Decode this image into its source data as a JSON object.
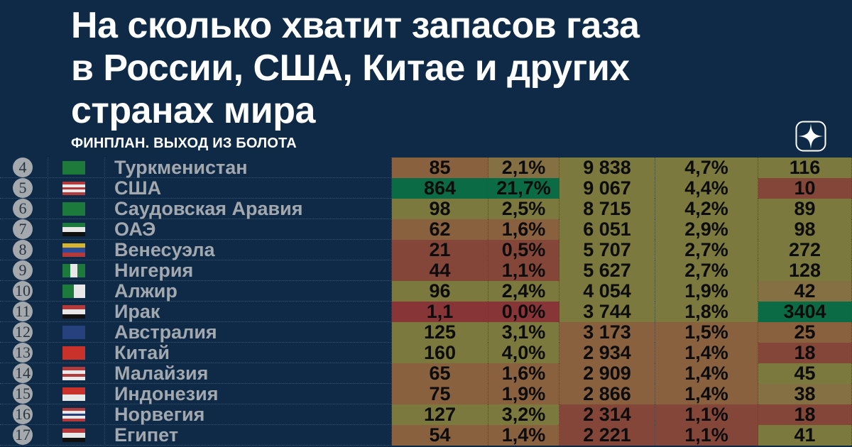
{
  "title": {
    "lines": [
      "На сколько хватит запасов газа",
      "в России, США, Китае и других",
      "странах мира"
    ]
  },
  "brand": {
    "label": "ФИНПЛАН. ВЫХОД ИЗ БОЛОТА",
    "logo_icon": "sparkle-star-icon"
  },
  "colors": {
    "background": "#0e2a47",
    "green": "#0b6b45",
    "olive": "#7b793d",
    "olive_brown": "#847042",
    "brown": "#8a613f",
    "red_brown": "#85463a",
    "red": "#883538"
  },
  "table": {
    "rows": [
      {
        "rank": "4",
        "country": "Туркменистан",
        "flag": [
          "#1e7a3a",
          "#1e7a3a"
        ],
        "flag_dir": "h",
        "values": [
          "85",
          "2,1%",
          "9 838",
          "4,7%",
          "116"
        ],
        "cell_colors": [
          "brown",
          "olive_brown",
          "olive",
          "olive",
          "olive"
        ]
      },
      {
        "rank": "5",
        "country": "США",
        "flag": [
          "#b33a3a",
          "#e8e8e8",
          "#b33a3a",
          "#e8e8e8",
          "#b33a3a"
        ],
        "flag_dir": "h",
        "values": [
          "864",
          "21,7%",
          "9 067",
          "4,4%",
          "10"
        ],
        "cell_colors": [
          "green",
          "green",
          "olive",
          "olive",
          "red_brown"
        ]
      },
      {
        "rank": "6",
        "country": "Саудовская Аравия",
        "flag": [
          "#1b7a3c"
        ],
        "flag_dir": "h",
        "values": [
          "98",
          "2,5%",
          "8 715",
          "4,2%",
          "89"
        ],
        "cell_colors": [
          "olive",
          "olive",
          "olive",
          "olive",
          "olive"
        ]
      },
      {
        "rank": "7",
        "country": "ОАЭ",
        "flag": [
          "#1b7a3c",
          "#e8e8e8",
          "#111111"
        ],
        "flag_dir": "h",
        "values": [
          "62",
          "1,6%",
          "6 051",
          "2,9%",
          "98"
        ],
        "cell_colors": [
          "brown",
          "brown",
          "olive",
          "olive",
          "olive"
        ]
      },
      {
        "rank": "8",
        "country": "Венесуэла",
        "flag": [
          "#d8b52a",
          "#2a4a9a",
          "#b33a3a"
        ],
        "flag_dir": "h",
        "values": [
          "21",
          "0,5%",
          "5 707",
          "2,7%",
          "272"
        ],
        "cell_colors": [
          "red_brown",
          "red_brown",
          "olive",
          "olive",
          "olive"
        ]
      },
      {
        "rank": "9",
        "country": "Нигерия",
        "flag": [
          "#1b7a3c",
          "#e8e8e8",
          "#1b7a3c"
        ],
        "flag_dir": "v",
        "values": [
          "44",
          "1,1%",
          "5 627",
          "2,7%",
          "128"
        ],
        "cell_colors": [
          "red_brown",
          "red_brown",
          "olive",
          "olive",
          "olive"
        ]
      },
      {
        "rank": "10",
        "country": "Алжир",
        "flag": [
          "#1b7a3c",
          "#e8e8e8"
        ],
        "flag_dir": "v",
        "values": [
          "96",
          "2,4%",
          "4 054",
          "1,9%",
          "42"
        ],
        "cell_colors": [
          "olive",
          "olive",
          "olive",
          "olive",
          "olive_brown"
        ]
      },
      {
        "rank": "11",
        "country": "Ирак",
        "flag": [
          "#b33a3a",
          "#e8e8e8",
          "#111111"
        ],
        "flag_dir": "h",
        "values": [
          "1,1",
          "0,0%",
          "3 744",
          "1,8%",
          "3404"
        ],
        "cell_colors": [
          "red",
          "red",
          "olive",
          "olive",
          "green"
        ]
      },
      {
        "rank": "12",
        "country": "Австралия",
        "flag": [
          "#27407e"
        ],
        "flag_dir": "h",
        "values": [
          "125",
          "3,1%",
          "3 173",
          "1,5%",
          "25"
        ],
        "cell_colors": [
          "olive",
          "olive",
          "brown",
          "brown",
          "brown"
        ]
      },
      {
        "rank": "13",
        "country": "Китай",
        "flag": [
          "#c8322a"
        ],
        "flag_dir": "h",
        "values": [
          "160",
          "4,0%",
          "2 934",
          "1,4%",
          "18"
        ],
        "cell_colors": [
          "olive",
          "olive",
          "brown",
          "brown",
          "red_brown"
        ]
      },
      {
        "rank": "14",
        "country": "Малайзия",
        "flag": [
          "#b33a3a",
          "#e8e8e8",
          "#b33a3a",
          "#e8e8e8"
        ],
        "flag_dir": "h",
        "values": [
          "65",
          "1,6%",
          "2 909",
          "1,4%",
          "45"
        ],
        "cell_colors": [
          "brown",
          "brown",
          "brown",
          "brown",
          "olive"
        ]
      },
      {
        "rank": "15",
        "country": "Индонезия",
        "flag": [
          "#c8322a",
          "#e8e8e8"
        ],
        "flag_dir": "h",
        "values": [
          "75",
          "1,9%",
          "2 866",
          "1,4%",
          "38"
        ],
        "cell_colors": [
          "brown",
          "brown",
          "brown",
          "brown",
          "olive_brown"
        ]
      },
      {
        "rank": "16",
        "country": "Норвегия",
        "flag": [
          "#b33a3a",
          "#e8e8e8",
          "#27407e",
          "#e8e8e8",
          "#b33a3a"
        ],
        "flag_dir": "h",
        "values": [
          "127",
          "3,2%",
          "2 314",
          "1,1%",
          "18"
        ],
        "cell_colors": [
          "olive",
          "olive",
          "red_brown",
          "red_brown",
          "red_brown"
        ]
      },
      {
        "rank": "17",
        "country": "Египет",
        "flag": [
          "#b33a3a",
          "#e8e8e8",
          "#111111"
        ],
        "flag_dir": "h",
        "values": [
          "54",
          "1,4%",
          "2 221",
          "1,1%",
          "41"
        ],
        "cell_colors": [
          "brown",
          "brown",
          "red_brown",
          "red_brown",
          "olive"
        ]
      }
    ]
  }
}
